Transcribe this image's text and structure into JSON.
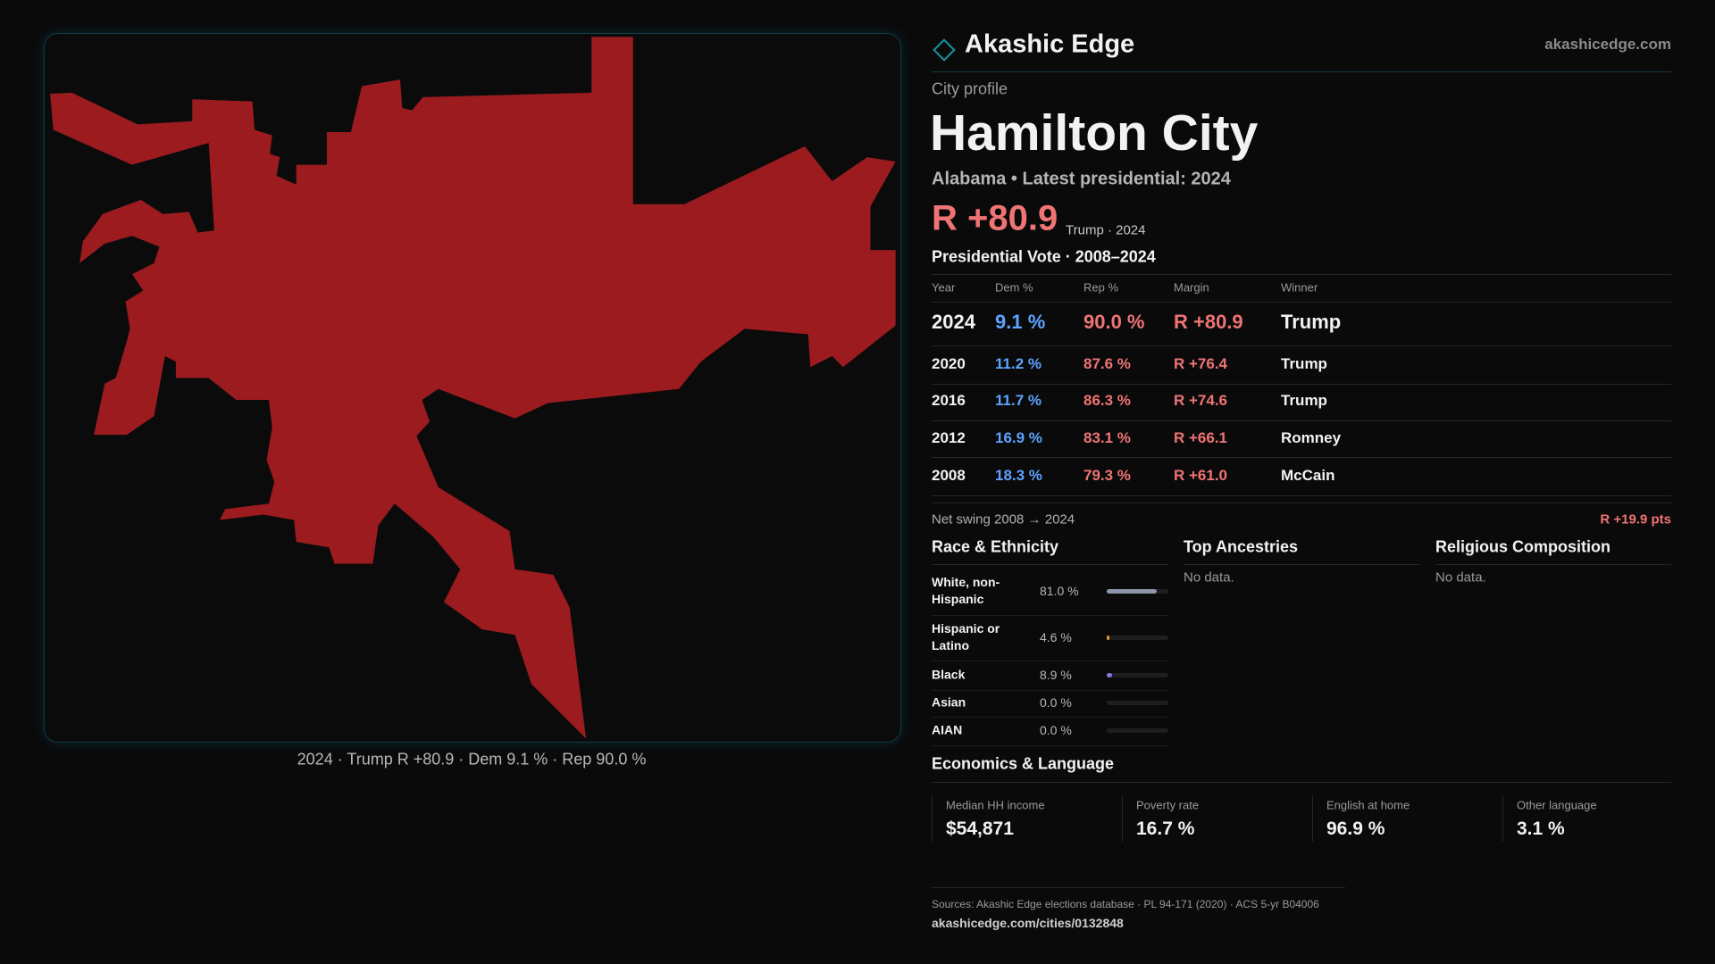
{
  "header": {
    "brand": "Akashic Edge",
    "site": "akashicedge.com"
  },
  "map": {
    "caption": "2024 · Trump R +80.9 · Dem 9.1 % · Rep 90.0 %"
  },
  "profile": {
    "kicker": "City profile",
    "title": "Hamilton City",
    "subtitle": "Alabama • Latest presidential: 2024",
    "margin": "R +80.9",
    "margin_note": "Trump · 2024"
  },
  "vote_table": {
    "title": "Presidential Vote · 2008–2024",
    "columns": [
      "Year",
      "Dem %",
      "Rep %",
      "Margin",
      "Winner"
    ],
    "rows": [
      [
        "2024",
        "9.1 %",
        "90.0 %",
        "R +80.9",
        "Trump"
      ],
      [
        "2020",
        "11.2 %",
        "87.6 %",
        "R +76.4",
        "Trump"
      ],
      [
        "2016",
        "11.7 %",
        "86.3 %",
        "R +74.6",
        "Trump"
      ],
      [
        "2012",
        "16.9 %",
        "83.1 %",
        "R +66.1",
        "Romney"
      ],
      [
        "2008",
        "18.3 %",
        "79.3 %",
        "R +61.0",
        "McCain"
      ]
    ]
  },
  "swing": {
    "label": "Net swing 2008 → 2024",
    "value": "R +19.9 pts"
  },
  "race": {
    "title": "Race & Ethnicity",
    "categories": [
      "White, non-Hispanic",
      "Hispanic or Latino",
      "Black",
      "Asian",
      "AIAN"
    ],
    "values": [
      81.0,
      4.6,
      8.9,
      0.0,
      0.0
    ],
    "value_labels": [
      "81.0 %",
      "4.6 %",
      "8.9 %",
      "0.0 %",
      "0.0 %"
    ],
    "colors": [
      "#8d96aa",
      "#e39a2c",
      "#8b72e6",
      "#4fb3c4",
      "#79c07a"
    ]
  },
  "ancestries": {
    "title": "Top Ancestries",
    "note": "No data."
  },
  "religion": {
    "title": "Religious Composition",
    "note": "No data."
  },
  "economics": {
    "title": "Economics & Language",
    "items": [
      {
        "label": "Median HH income",
        "value": "$54,871"
      },
      {
        "label": "Poverty rate",
        "value": "16.7 %"
      },
      {
        "label": "English at home",
        "value": "96.9 %"
      },
      {
        "label": "Other language",
        "value": "3.1 %"
      }
    ]
  },
  "footer": {
    "sources": "Sources: Akashic Edge elections database · PL 94-171 (2020) · ACS 5-yr B04006",
    "url": "akashicedge.com/cities/0132848"
  }
}
